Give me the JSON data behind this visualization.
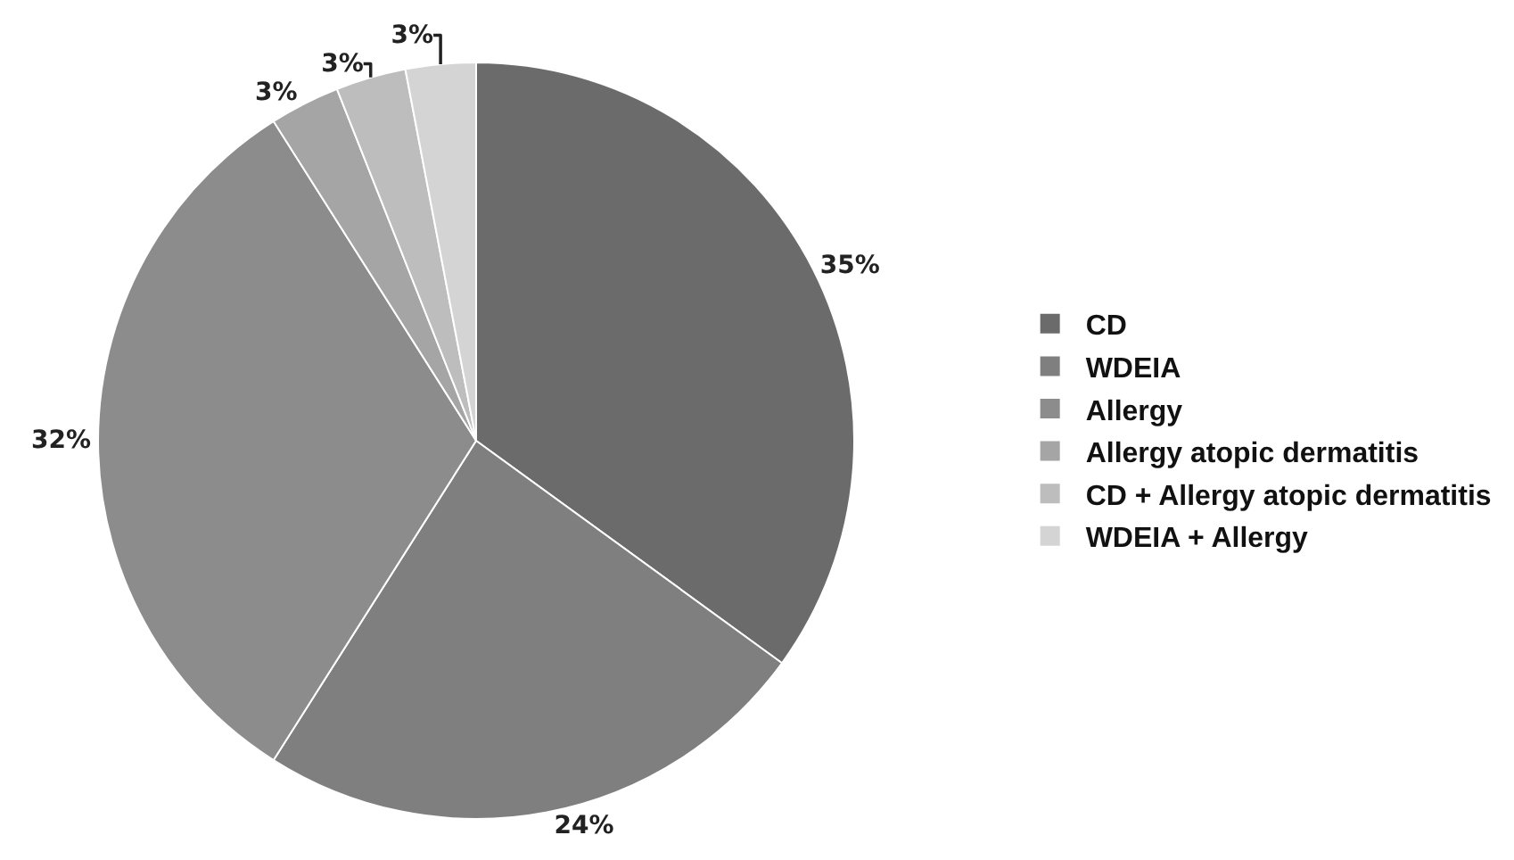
{
  "chart_data": {
    "type": "pie",
    "categories": [
      "CD",
      "WDEIA",
      "Allergy",
      "Allergy atopic dermatitis",
      "CD + Allergy atopic dermatitis",
      "WDEIA + Allergy"
    ],
    "values": [
      35,
      24,
      32,
      3,
      3,
      3
    ],
    "value_labels": [
      "35%",
      "24%",
      "32%",
      "3%",
      "3%",
      "3%"
    ],
    "colors": [
      "#6b6b6b",
      "#7f7f7f",
      "#8c8c8c",
      "#a5a5a5",
      "#bdbdbd",
      "#d4d4d4"
    ],
    "legend": "right"
  }
}
